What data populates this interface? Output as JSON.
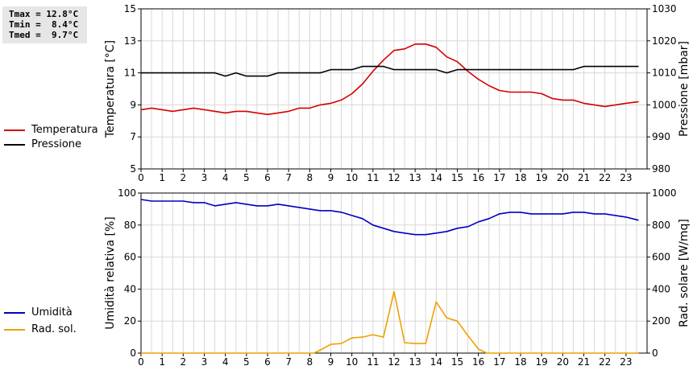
{
  "stats": [
    {
      "label": "Tmax",
      "value": "12.8°C"
    },
    {
      "label": "Tmin",
      "value": "8.4°C"
    },
    {
      "label": "Tmed",
      "value": "9.7°C"
    }
  ],
  "colors": {
    "temperature": "#d40000",
    "pressure": "#000000",
    "humidity": "#0000c0",
    "solar": "#f0a000",
    "grid": "#d8d8d8"
  },
  "chart_data": [
    {
      "type": "line",
      "xlim": [
        0,
        24
      ],
      "x_ticks": [
        0,
        1,
        2,
        3,
        4,
        5,
        6,
        7,
        8,
        9,
        10,
        11,
        12,
        13,
        14,
        15,
        16,
        17,
        18,
        19,
        20,
        21,
        22,
        23
      ],
      "grid": true,
      "legend_position": "left",
      "ylabel": "Temperatura [°C]",
      "ylim": [
        5,
        15
      ],
      "y_ticks": [
        5,
        7,
        9,
        11,
        13,
        15
      ],
      "y2label": "Pressione [mbar]",
      "y2lim": [
        980,
        1030
      ],
      "y2_ticks": [
        980,
        990,
        1000,
        1010,
        1020,
        1030
      ],
      "series": [
        {
          "name": "Temperatura",
          "axis": "left",
          "color": "#d40000",
          "points": [
            [
              0,
              8.7
            ],
            [
              0.5,
              8.8
            ],
            [
              1,
              8.7
            ],
            [
              1.5,
              8.6
            ],
            [
              2,
              8.7
            ],
            [
              2.5,
              8.8
            ],
            [
              3,
              8.7
            ],
            [
              3.5,
              8.6
            ],
            [
              4,
              8.5
            ],
            [
              4.5,
              8.6
            ],
            [
              5,
              8.6
            ],
            [
              5.5,
              8.5
            ],
            [
              6,
              8.4
            ],
            [
              6.5,
              8.5
            ],
            [
              7,
              8.6
            ],
            [
              7.5,
              8.8
            ],
            [
              8,
              8.8
            ],
            [
              8.5,
              9.0
            ],
            [
              9,
              9.1
            ],
            [
              9.5,
              9.3
            ],
            [
              10,
              9.7
            ],
            [
              10.5,
              10.3
            ],
            [
              11,
              11.1
            ],
            [
              11.5,
              11.8
            ],
            [
              12,
              12.4
            ],
            [
              12.5,
              12.5
            ],
            [
              13,
              12.8
            ],
            [
              13.5,
              12.8
            ],
            [
              14,
              12.6
            ],
            [
              14.5,
              12.0
            ],
            [
              15,
              11.7
            ],
            [
              15.5,
              11.1
            ],
            [
              16,
              10.6
            ],
            [
              16.5,
              10.2
            ],
            [
              17,
              9.9
            ],
            [
              17.5,
              9.8
            ],
            [
              18,
              9.8
            ],
            [
              18.5,
              9.8
            ],
            [
              19,
              9.7
            ],
            [
              19.5,
              9.4
            ],
            [
              20,
              9.3
            ],
            [
              20.5,
              9.3
            ],
            [
              21,
              9.1
            ],
            [
              21.5,
              9.0
            ],
            [
              22,
              8.9
            ],
            [
              22.5,
              9.0
            ],
            [
              23,
              9.1
            ],
            [
              23.6,
              9.2
            ]
          ]
        },
        {
          "name": "Pressione",
          "axis": "right",
          "color": "#000000",
          "points": [
            [
              0,
              1010
            ],
            [
              3.5,
              1010
            ],
            [
              4,
              1009
            ],
            [
              4.5,
              1010
            ],
            [
              5,
              1009
            ],
            [
              6,
              1009
            ],
            [
              6.5,
              1010
            ],
            [
              8.5,
              1010
            ],
            [
              9,
              1011
            ],
            [
              10,
              1011
            ],
            [
              10.5,
              1012
            ],
            [
              11.5,
              1012
            ],
            [
              12,
              1011
            ],
            [
              14,
              1011
            ],
            [
              14.5,
              1010
            ],
            [
              15,
              1011
            ],
            [
              20.5,
              1011
            ],
            [
              21,
              1012
            ],
            [
              23.6,
              1012
            ]
          ]
        }
      ]
    },
    {
      "type": "line",
      "xlim": [
        0,
        24
      ],
      "x_ticks": [
        0,
        1,
        2,
        3,
        4,
        5,
        6,
        7,
        8,
        9,
        10,
        11,
        12,
        13,
        14,
        15,
        16,
        17,
        18,
        19,
        20,
        21,
        22,
        23
      ],
      "grid": true,
      "legend_position": "left",
      "ylabel": "Umidità relativa [%]",
      "ylim": [
        0,
        100
      ],
      "y_ticks": [
        0,
        20,
        40,
        60,
        80,
        100
      ],
      "y2label": "Rad. solare [W/mq]",
      "y2lim": [
        0,
        1000
      ],
      "y2_ticks": [
        0,
        200,
        400,
        600,
        800,
        1000
      ],
      "series": [
        {
          "name": "Umidità",
          "axis": "left",
          "color": "#0000c0",
          "points": [
            [
              0,
              96
            ],
            [
              0.5,
              95
            ],
            [
              2,
              95
            ],
            [
              2.5,
              94
            ],
            [
              3,
              94
            ],
            [
              3.5,
              92
            ],
            [
              4,
              93
            ],
            [
              4.5,
              94
            ],
            [
              5,
              93
            ],
            [
              5.5,
              92
            ],
            [
              6,
              92
            ],
            [
              6.5,
              93
            ],
            [
              7,
              92
            ],
            [
              7.5,
              91
            ],
            [
              8,
              90
            ],
            [
              8.5,
              89
            ],
            [
              9,
              89
            ],
            [
              9.5,
              88
            ],
            [
              10,
              86
            ],
            [
              10.5,
              84
            ],
            [
              11,
              80
            ],
            [
              11.5,
              78
            ],
            [
              12,
              76
            ],
            [
              12.5,
              75
            ],
            [
              13,
              74
            ],
            [
              13.5,
              74
            ],
            [
              14,
              75
            ],
            [
              14.5,
              76
            ],
            [
              15,
              78
            ],
            [
              15.5,
              79
            ],
            [
              16,
              82
            ],
            [
              16.5,
              84
            ],
            [
              17,
              87
            ],
            [
              17.5,
              88
            ],
            [
              18,
              88
            ],
            [
              18.5,
              87
            ],
            [
              19,
              87
            ],
            [
              20,
              87
            ],
            [
              20.5,
              88
            ],
            [
              21,
              88
            ],
            [
              21.5,
              87
            ],
            [
              22,
              87
            ],
            [
              22.5,
              86
            ],
            [
              23,
              85
            ],
            [
              23.6,
              83
            ]
          ]
        },
        {
          "name": "Rad. sol.",
          "axis": "right",
          "color": "#f0a000",
          "points": [
            [
              0,
              0
            ],
            [
              8.2,
              0
            ],
            [
              8.6,
              25
            ],
            [
              9,
              55
            ],
            [
              9.5,
              60
            ],
            [
              10,
              95
            ],
            [
              10.5,
              100
            ],
            [
              11,
              115
            ],
            [
              11.5,
              100
            ],
            [
              12,
              385
            ],
            [
              12.5,
              65
            ],
            [
              13,
              60
            ],
            [
              13.5,
              60
            ],
            [
              14,
              320
            ],
            [
              14.5,
              220
            ],
            [
              15,
              200
            ],
            [
              15.5,
              110
            ],
            [
              16,
              25
            ],
            [
              16.4,
              0
            ],
            [
              23.6,
              0
            ]
          ]
        }
      ]
    }
  ]
}
